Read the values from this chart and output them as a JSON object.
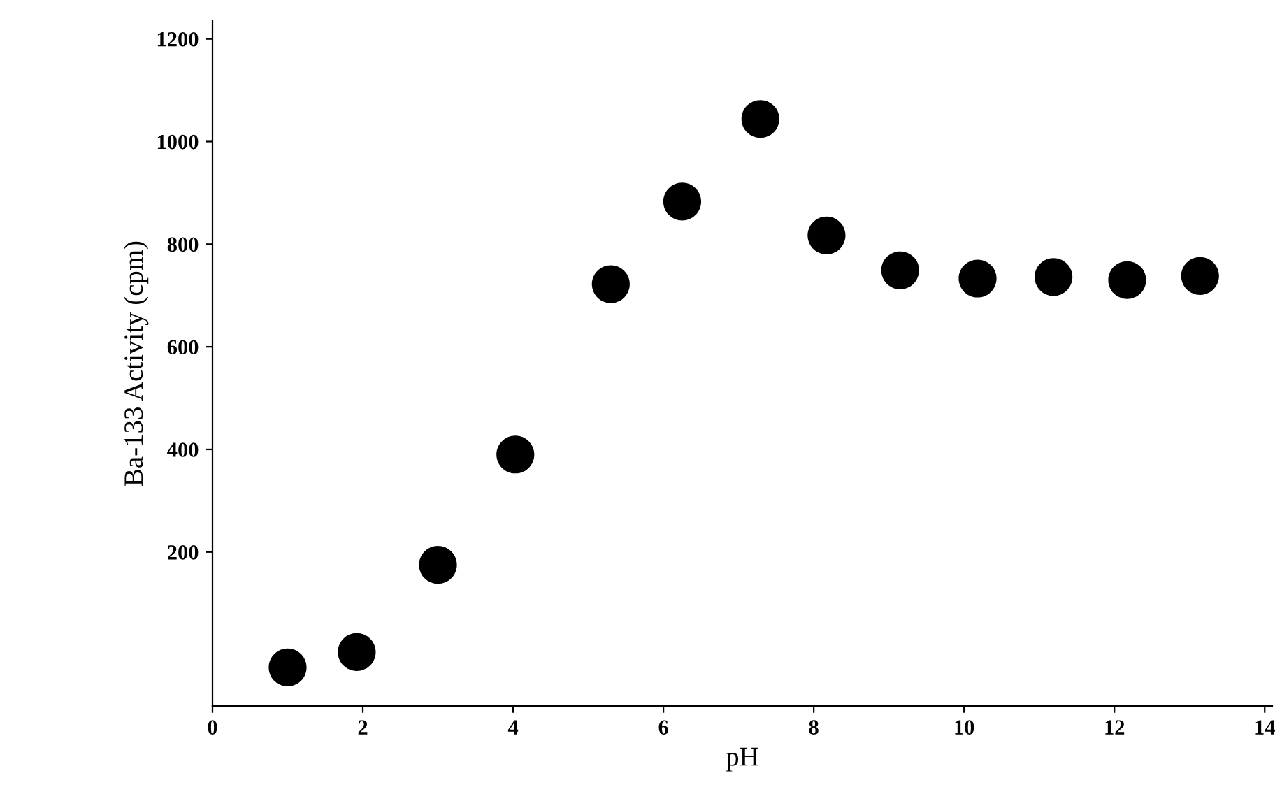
{
  "chart_data": {
    "type": "scatter",
    "xlabel": "pH",
    "ylabel": "Ba-133 Activity (cpm)",
    "x": [
      1.0,
      1.92,
      3.0,
      4.03,
      5.3,
      6.25,
      7.29,
      8.17,
      9.15,
      10.18,
      11.19,
      12.17,
      13.14
    ],
    "series": [
      {
        "color": "#000000",
        "values": [
          -25,
          5,
          175,
          390,
          722,
          883,
          1044,
          817,
          749,
          733,
          736,
          730,
          738
        ]
      }
    ],
    "xlim": [
      0,
      14.1
    ],
    "ylim": [
      -100,
      1235
    ],
    "xticks": [
      0,
      2,
      4,
      6,
      8,
      10,
      12,
      14
    ],
    "yticks": [
      200,
      400,
      600,
      800,
      1000,
      1200
    ],
    "marker": "circle",
    "grid": false,
    "legend": false
  }
}
